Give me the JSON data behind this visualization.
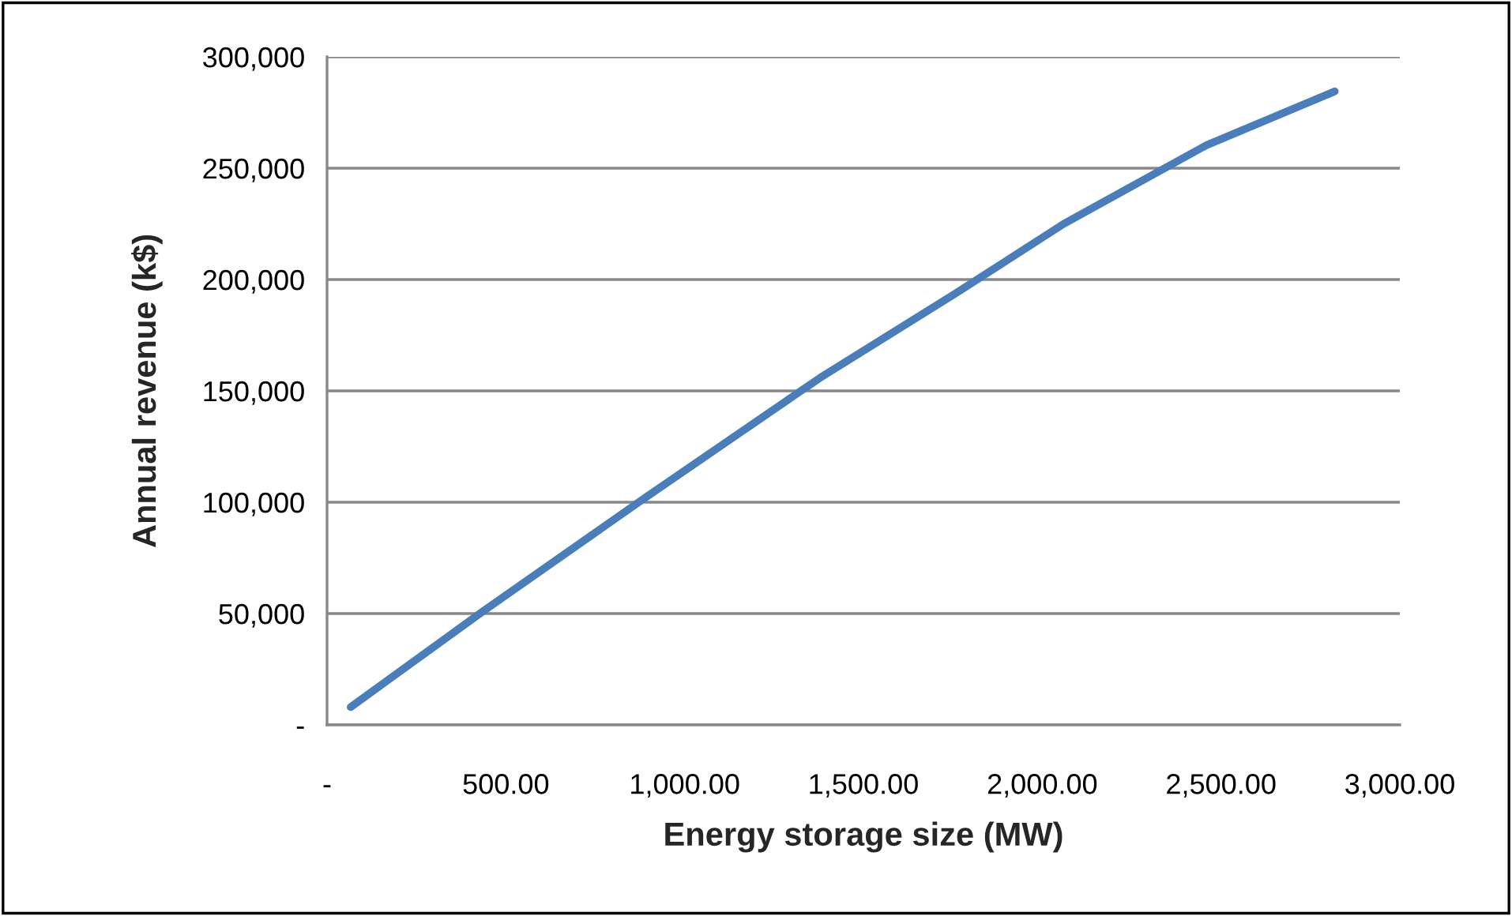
{
  "chart_data": {
    "type": "line",
    "xlabel": "Energy storage size (MW)",
    "ylabel": "Annual revenue (k$)",
    "x": [
      66,
      435,
      885,
      1378,
      1753,
      2060,
      2460,
      2818
    ],
    "series": [
      {
        "color": "#4a7ebb",
        "values": [
          8000,
          50900,
          101500,
          155800,
          193300,
          225000,
          260400,
          284500
        ]
      }
    ],
    "xlim": [
      0,
      3000
    ],
    "ylim": [
      0,
      300000
    ],
    "xticks": [
      {
        "value": 0,
        "label": "-"
      },
      {
        "value": 500,
        "label": "500.00"
      },
      {
        "value": 1000,
        "label": "1,000.00"
      },
      {
        "value": 1500,
        "label": "1,500.00"
      },
      {
        "value": 2000,
        "label": "2,000.00"
      },
      {
        "value": 2500,
        "label": "2,500.00"
      },
      {
        "value": 3000,
        "label": "3,000.00"
      }
    ],
    "yticks": [
      {
        "value": 0,
        "label": "-"
      },
      {
        "value": 50000,
        "label": "50,000"
      },
      {
        "value": 100000,
        "label": "100,000"
      },
      {
        "value": 150000,
        "label": "150,000"
      },
      {
        "value": 200000,
        "label": "200,000"
      },
      {
        "value": 250000,
        "label": "250,000"
      },
      {
        "value": 300000,
        "label": "300,000"
      }
    ],
    "grid": "y",
    "marker": "none",
    "line_style": "solid"
  }
}
